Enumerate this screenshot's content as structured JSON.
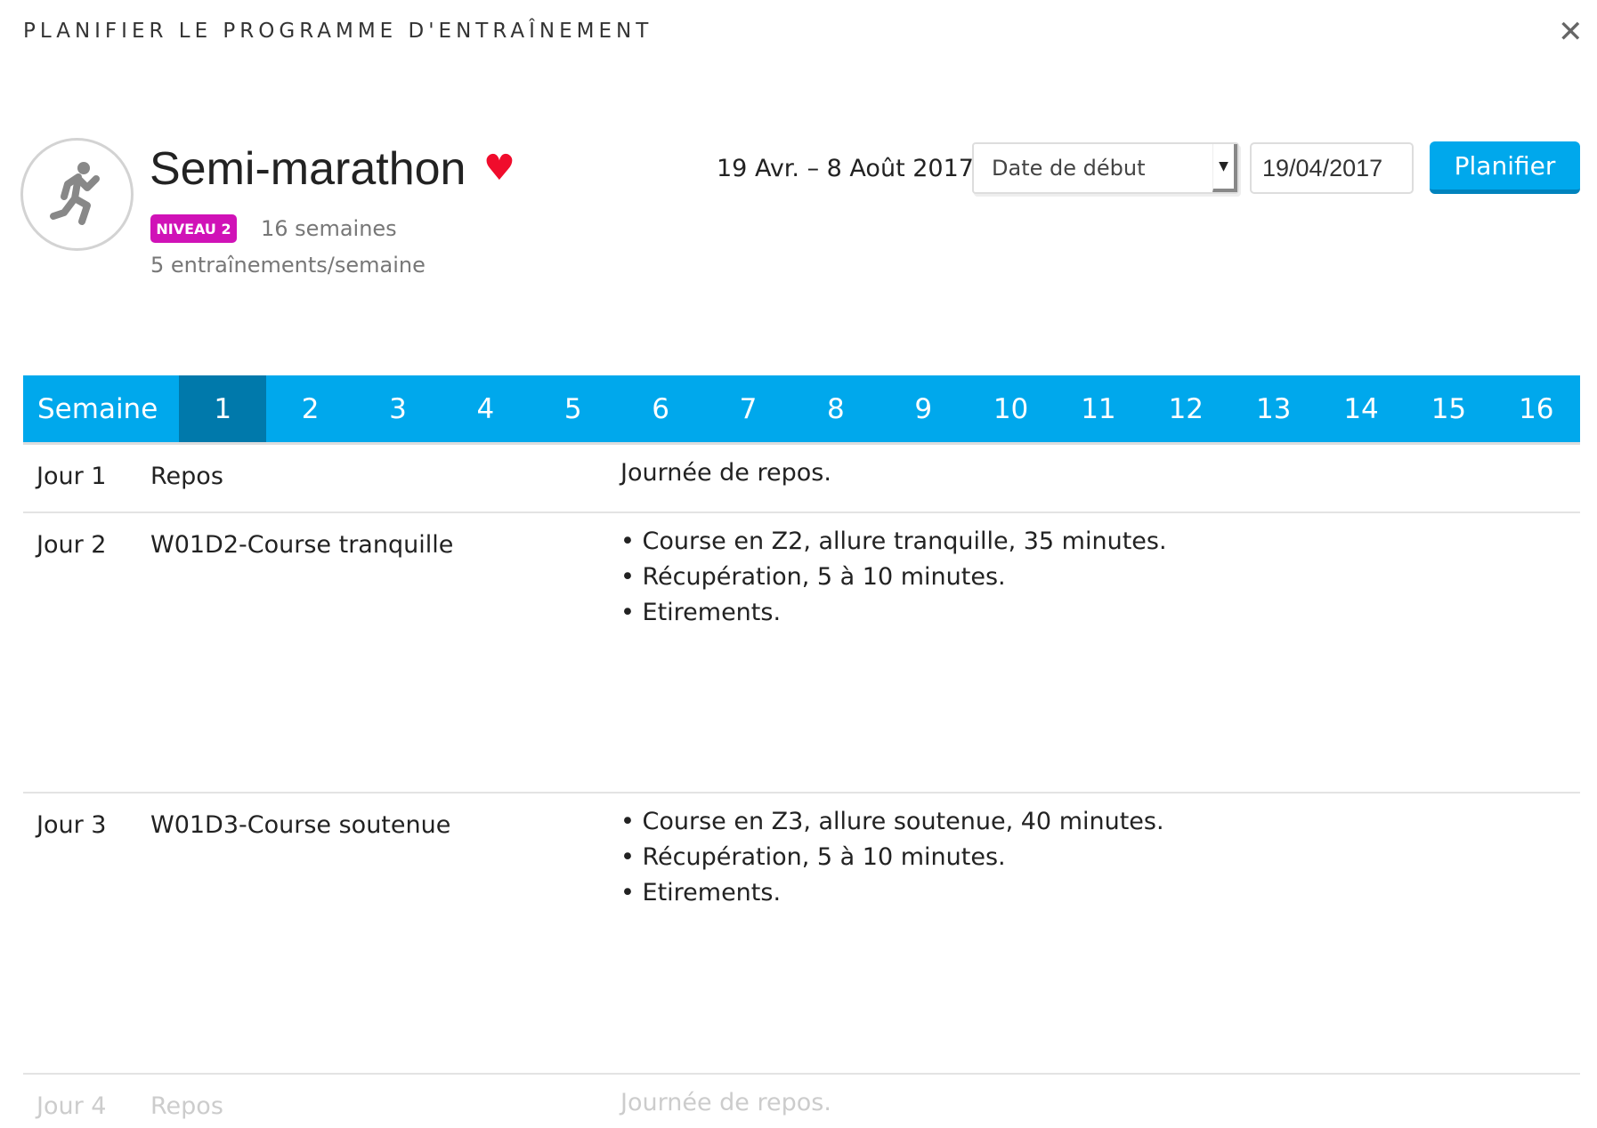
{
  "dialog": {
    "title": "PLANIFIER LE PROGRAMME D'ENTRAÎNEMENT",
    "close_icon": "close-icon"
  },
  "program": {
    "name": "Semi-marathon",
    "icon": "running-icon",
    "favorite_icon": "heart-icon",
    "level": "NIVEAU 2",
    "level_color": "#d012b7",
    "duration": "16 semaines",
    "frequency": "5 entraînements/semaine"
  },
  "schedule": {
    "range": "19 Avr. – 8 Août 2017",
    "select_value": "Date de début",
    "date_value": "19/04/2017",
    "button": "Planifier"
  },
  "weeks": {
    "label": "Semaine",
    "items": [
      "1",
      "2",
      "3",
      "4",
      "5",
      "6",
      "7",
      "8",
      "9",
      "10",
      "11",
      "12",
      "13",
      "14",
      "15",
      "16"
    ],
    "active": "1",
    "accent": "#00a8ec",
    "active_color": "#0079ab"
  },
  "days": [
    {
      "day": "Jour 1",
      "name": "Repos",
      "details": [
        "Journée de repos."
      ]
    },
    {
      "day": "Jour 2",
      "name": "W01D2-Course tranquille",
      "details": [
        "• Course en Z2, allure tranquille, 35 minutes.",
        "• Récupération, 5 à 10 minutes.",
        "• Etirements."
      ]
    },
    {
      "day": "Jour 3",
      "name": "W01D3-Course soutenue",
      "details": [
        "• Course en Z3, allure soutenue, 40 minutes.",
        "• Récupération, 5 à 10 minutes.",
        "• Etirements."
      ]
    },
    {
      "day": "Jour 4",
      "name": "Repos",
      "details": [
        "Journée de repos."
      ]
    }
  ]
}
